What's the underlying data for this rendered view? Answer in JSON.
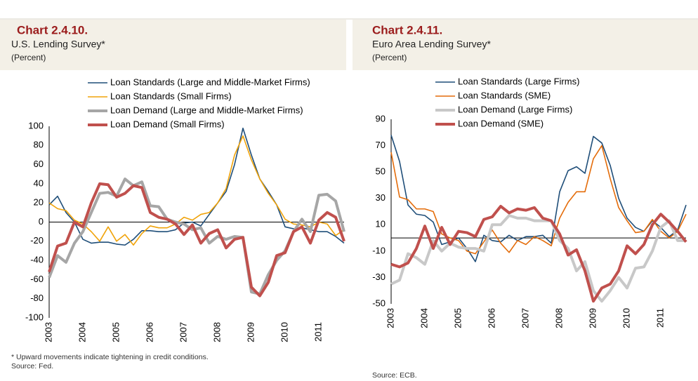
{
  "chart_data": [
    {
      "type": "line",
      "title": "Chart 2.4.10.",
      "subtitle": "U.S. Lending Survey*",
      "unit": "(Percent)",
      "categories": [
        "2003",
        null,
        null,
        null,
        "2004",
        null,
        null,
        null,
        "2005",
        null,
        null,
        null,
        "2006",
        null,
        null,
        null,
        "2007",
        null,
        null,
        null,
        "2008",
        null,
        null,
        null,
        "2009",
        null,
        null,
        null,
        "2010",
        null,
        null,
        null,
        "2011",
        null,
        null,
        null
      ],
      "series": [
        {
          "name": "Loan Standards (Large and Middle-Market Firms)",
          "color": "#1f4e79",
          "values": [
            18,
            27,
            10,
            0,
            -18,
            -22,
            -21,
            -21,
            -23,
            -24,
            -18,
            -9,
            -9,
            -10,
            -10,
            -8,
            -1,
            0,
            -4,
            8,
            20,
            32,
            60,
            98,
            70,
            45,
            32,
            18,
            -5,
            -7,
            -6,
            -8,
            -10,
            -10,
            -15,
            -22
          ]
        },
        {
          "name": "Loan Standards (Small Firms)",
          "color": "#f0a30a",
          "values": [
            20,
            14,
            12,
            2,
            -2,
            -10,
            -20,
            -5,
            -20,
            -13,
            -24,
            -12,
            -4,
            -6,
            -6,
            -2,
            5,
            2,
            8,
            10,
            20,
            35,
            70,
            90,
            65,
            45,
            30,
            18,
            3,
            -2,
            -3,
            -5,
            0,
            -2,
            -14,
            -8
          ]
        },
        {
          "name": "Loan Demand (Large and Middle-Market Firms)",
          "color": "#a6a6a6",
          "values": [
            -58,
            -35,
            -42,
            -22,
            -10,
            10,
            30,
            31,
            27,
            45,
            38,
            42,
            17,
            16,
            3,
            0,
            -2,
            -8,
            -6,
            -22,
            -15,
            -18,
            -15,
            -16,
            -73,
            -75,
            -55,
            -40,
            -30,
            -10,
            3,
            -10,
            28,
            29,
            22,
            -10
          ]
        },
        {
          "name": "Loan Demand (Small Firms)",
          "color": "#c0504d",
          "values": [
            -52,
            -25,
            -22,
            0,
            -5,
            20,
            40,
            39,
            26,
            30,
            38,
            36,
            10,
            5,
            3,
            -2,
            -13,
            -3,
            -22,
            -12,
            -8,
            -27,
            -18,
            -16,
            -68,
            -77,
            -63,
            -35,
            -32,
            -10,
            -5,
            -22,
            2,
            10,
            5,
            -20
          ]
        }
      ],
      "ylim": [
        -100,
        100
      ],
      "yticks": [
        -100,
        -80,
        -60,
        -40,
        -20,
        0,
        20,
        40,
        60,
        80,
        100
      ],
      "notes": [
        "* Upward movements indicate tightening in credit conditions.",
        "Source: Fed."
      ]
    },
    {
      "type": "line",
      "title": "Chart 2.4.11.",
      "subtitle": "Euro Area Lending Survey*",
      "unit": "(Percent)",
      "categories": [
        "2003",
        null,
        null,
        null,
        "2004",
        null,
        null,
        null,
        "2005",
        null,
        null,
        null,
        "2006",
        null,
        null,
        null,
        "2007",
        null,
        null,
        null,
        "2008",
        null,
        null,
        null,
        "2009",
        null,
        null,
        null,
        "2010",
        null,
        null,
        null,
        "2011",
        null,
        null,
        null
      ],
      "series": [
        {
          "name": "Loan Standards (Large Firms)",
          "color": "#1f4e79",
          "values": [
            78,
            58,
            25,
            18,
            17,
            12,
            -5,
            -3,
            0,
            -8,
            -18,
            2,
            -2,
            -3,
            2,
            -2,
            1,
            1,
            2,
            -4,
            35,
            51,
            54,
            49,
            77,
            72,
            55,
            30,
            15,
            8,
            5,
            13,
            8,
            1,
            6,
            25
          ]
        },
        {
          "name": "Loan Standards (SME)",
          "color": "#e46c0a",
          "values": [
            65,
            31,
            29,
            22,
            22,
            20,
            3,
            0,
            -2,
            -10,
            -12,
            -3,
            6,
            -4,
            -11,
            -2,
            -5,
            1,
            -2,
            -6,
            15,
            27,
            35,
            35,
            60,
            70,
            45,
            23,
            13,
            4,
            5,
            14,
            5,
            0,
            5,
            18
          ]
        },
        {
          "name": "Loan Demand (Large Firms)",
          "color": "#c8c8c8",
          "values": [
            -35,
            -32,
            -12,
            -15,
            -20,
            -2,
            -10,
            -4,
            -7,
            -8,
            -8,
            -10,
            10,
            10,
            17,
            15,
            15,
            13,
            13,
            13,
            -2,
            -8,
            -25,
            -18,
            -40,
            -48,
            -40,
            -30,
            -38,
            -23,
            -22,
            -10,
            8,
            13,
            -2,
            -2
          ]
        },
        {
          "name": "Loan Demand (SME)",
          "color": "#c0504d",
          "values": [
            -20,
            -22,
            -19,
            -8,
            9,
            -8,
            8,
            -5,
            5,
            4,
            1,
            14,
            16,
            24,
            19,
            22,
            21,
            23,
            15,
            13,
            3,
            -13,
            -9,
            -25,
            -48,
            -38,
            -35,
            -25,
            -6,
            -12,
            -5,
            10,
            18,
            12,
            5,
            -3
          ]
        }
      ],
      "ylim": [
        -50,
        90
      ],
      "yticks": [
        -50,
        -30,
        -10,
        10,
        30,
        50,
        70,
        90
      ],
      "notes": [
        "Source: ECB."
      ]
    }
  ]
}
